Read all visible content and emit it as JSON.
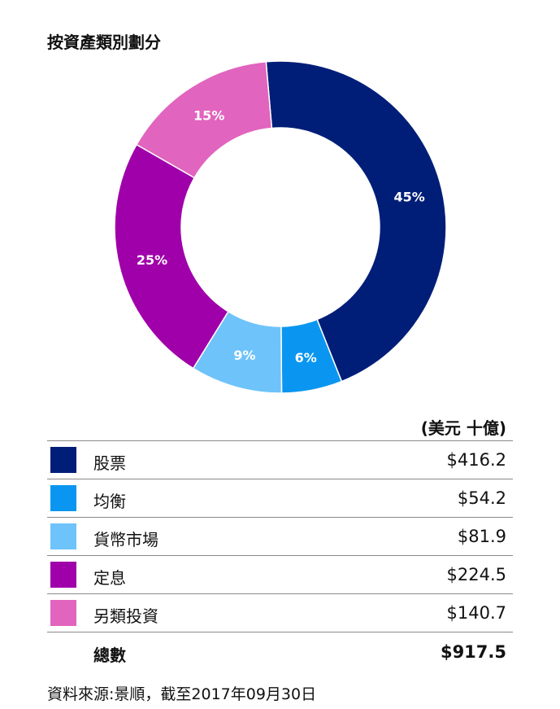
{
  "title": "按資產類別劃分",
  "unit": "(美元 十億)",
  "chart_data": {
    "type": "pie",
    "style": "donut",
    "categories": [
      "股票",
      "均衡",
      "貨幣市場",
      "定息",
      "另類投資"
    ],
    "percent_labels": [
      "45%",
      "6%",
      "9%",
      "25%",
      "15%"
    ],
    "values": [
      416.2,
      54.2,
      81.9,
      224.5,
      140.7
    ],
    "value_labels": [
      "$416.2",
      "$54.2",
      "$81.9",
      "$224.5",
      "$140.7"
    ],
    "colors": [
      "#001e78",
      "#0a96f0",
      "#6ec3fa",
      "#a000aa",
      "#e164be"
    ],
    "total_label": "總數",
    "total_value": "$917.5"
  },
  "source": "資料來源:景順，截至2017年09月30日"
}
